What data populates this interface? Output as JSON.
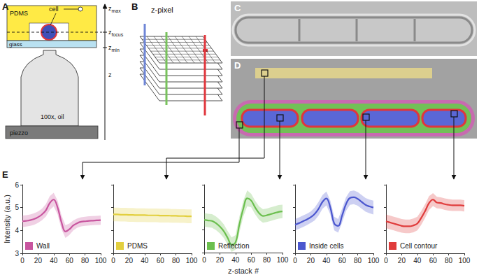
{
  "figure": {
    "panel_labels": [
      "A",
      "B",
      "C",
      "D",
      "E"
    ],
    "A": {
      "pdms": "PDMS",
      "glass": "glass",
      "objective": "100x, oil",
      "stage": "piezzo",
      "cell": "cell",
      "z_axis": "z",
      "z_levels": [
        {
          "main": "z",
          "sub": "max"
        },
        {
          "main": "z",
          "sub": "focus"
        },
        {
          "main": "z",
          "sub": "min"
        }
      ]
    },
    "B": {
      "label": "z-pixel"
    }
  },
  "chart_data": [
    {
      "type": "line",
      "ylabel": "Intensity (a.u.)",
      "legend": "lower left",
      "tick_labels": true,
      "x": [
        0,
        5,
        10,
        15,
        20,
        25,
        30,
        35,
        40,
        45,
        50,
        55,
        60,
        65,
        70,
        75,
        80,
        85,
        90,
        95,
        100
      ],
      "xlim": [
        0,
        100
      ],
      "xticks": [
        0,
        20,
        40,
        60,
        80,
        100
      ],
      "ylim": [
        3,
        6
      ],
      "yticks": [
        3,
        4,
        5,
        6
      ],
      "series": [
        {
          "name": "Wall",
          "color": "#c8559f",
          "values": [
            4.4,
            4.42,
            4.45,
            4.5,
            4.58,
            4.7,
            4.88,
            5.2,
            5.35,
            5.0,
            4.35,
            3.95,
            4.05,
            4.22,
            4.32,
            4.38,
            4.4,
            4.42,
            4.43,
            4.44,
            4.45
          ],
          "std": [
            0.25,
            0.25,
            0.25,
            0.25,
            0.25,
            0.25,
            0.27,
            0.3,
            0.3,
            0.3,
            0.3,
            0.28,
            0.25,
            0.22,
            0.2,
            0.2,
            0.2,
            0.2,
            0.2,
            0.2,
            0.2
          ]
        }
      ]
    },
    {
      "type": "line",
      "legend": "lower left",
      "tick_labels": "x",
      "x": [
        0,
        5,
        10,
        15,
        20,
        25,
        30,
        35,
        40,
        45,
        50,
        55,
        60,
        65,
        70,
        75,
        80,
        85,
        90,
        95,
        100
      ],
      "xlim": [
        0,
        100
      ],
      "xticks": [
        0,
        20,
        40,
        60,
        80,
        100
      ],
      "ylim": [
        3,
        6
      ],
      "yticks": [
        3,
        4,
        5,
        6
      ],
      "series": [
        {
          "name": "PDMS",
          "color": "#e2cf3f",
          "values": [
            4.7,
            4.7,
            4.69,
            4.69,
            4.68,
            4.68,
            4.67,
            4.67,
            4.67,
            4.66,
            4.66,
            4.66,
            4.65,
            4.65,
            4.65,
            4.64,
            4.64,
            4.63,
            4.63,
            4.62,
            4.62
          ],
          "std": [
            0.3,
            0.3,
            0.3,
            0.3,
            0.3,
            0.3,
            0.3,
            0.3,
            0.3,
            0.3,
            0.3,
            0.3,
            0.3,
            0.3,
            0.3,
            0.3,
            0.3,
            0.3,
            0.3,
            0.3,
            0.3
          ]
        }
      ]
    },
    {
      "type": "line",
      "xlabel": "z-stack #",
      "legend": "lower left",
      "tick_labels": "x",
      "x": [
        0,
        5,
        10,
        15,
        20,
        25,
        30,
        35,
        40,
        45,
        50,
        55,
        60,
        65,
        70,
        75,
        80,
        85,
        90,
        95,
        100
      ],
      "xlim": [
        0,
        100
      ],
      "xticks": [
        0,
        20,
        40,
        60,
        80,
        100
      ],
      "ylim": [
        3,
        6
      ],
      "yticks": [
        3,
        4,
        5,
        6
      ],
      "series": [
        {
          "name": "Reflection",
          "color": "#6bbf4e",
          "values": [
            4.45,
            4.42,
            4.4,
            4.3,
            4.15,
            3.95,
            3.65,
            3.35,
            3.45,
            4.25,
            4.95,
            5.4,
            5.3,
            5.0,
            4.75,
            4.62,
            4.65,
            4.7,
            4.75,
            4.8,
            4.82
          ],
          "std": [
            0.3,
            0.3,
            0.3,
            0.3,
            0.3,
            0.3,
            0.3,
            0.32,
            0.32,
            0.35,
            0.35,
            0.35,
            0.3,
            0.3,
            0.3,
            0.3,
            0.3,
            0.3,
            0.3,
            0.3,
            0.3
          ]
        }
      ]
    },
    {
      "type": "line",
      "legend": "lower left",
      "tick_labels": "x",
      "x": [
        0,
        5,
        10,
        15,
        20,
        25,
        30,
        35,
        40,
        45,
        50,
        55,
        60,
        65,
        70,
        75,
        80,
        85,
        90,
        95,
        100
      ],
      "xlim": [
        0,
        100
      ],
      "xticks": [
        0,
        20,
        40,
        60,
        80,
        100
      ],
      "ylim": [
        3,
        6
      ],
      "yticks": [
        3,
        4,
        5,
        6
      ],
      "series": [
        {
          "name": "Inside cells",
          "color": "#4b57cf",
          "values": [
            4.25,
            4.32,
            4.4,
            4.48,
            4.58,
            4.72,
            4.95,
            5.25,
            5.4,
            5.0,
            4.3,
            4.2,
            4.65,
            5.15,
            5.42,
            5.45,
            5.38,
            5.25,
            5.12,
            5.05,
            5.0
          ],
          "std": [
            0.25,
            0.25,
            0.25,
            0.25,
            0.25,
            0.28,
            0.3,
            0.3,
            0.3,
            0.3,
            0.3,
            0.3,
            0.3,
            0.3,
            0.3,
            0.3,
            0.3,
            0.3,
            0.3,
            0.3,
            0.3
          ]
        }
      ]
    },
    {
      "type": "line",
      "legend": "lower left",
      "tick_labels": "x",
      "x": [
        0,
        5,
        10,
        15,
        20,
        25,
        30,
        35,
        40,
        45,
        50,
        55,
        60,
        65,
        70,
        75,
        80,
        85,
        90,
        95,
        100
      ],
      "xlim": [
        0,
        100
      ],
      "xticks": [
        0,
        20,
        40,
        60,
        80,
        100
      ],
      "ylim": [
        3,
        6
      ],
      "yticks": [
        3,
        4,
        5,
        6
      ],
      "series": [
        {
          "name": "Cell contour",
          "color": "#e03c3c",
          "values": [
            4.4,
            4.35,
            4.3,
            4.25,
            4.2,
            4.18,
            4.18,
            4.22,
            4.3,
            4.55,
            4.85,
            5.2,
            5.35,
            5.22,
            5.2,
            5.15,
            5.12,
            5.1,
            5.1,
            5.1,
            5.08
          ],
          "std": [
            0.3,
            0.3,
            0.3,
            0.3,
            0.3,
            0.3,
            0.3,
            0.3,
            0.3,
            0.3,
            0.3,
            0.3,
            0.28,
            0.25,
            0.25,
            0.25,
            0.25,
            0.25,
            0.25,
            0.25,
            0.25
          ]
        }
      ]
    }
  ]
}
